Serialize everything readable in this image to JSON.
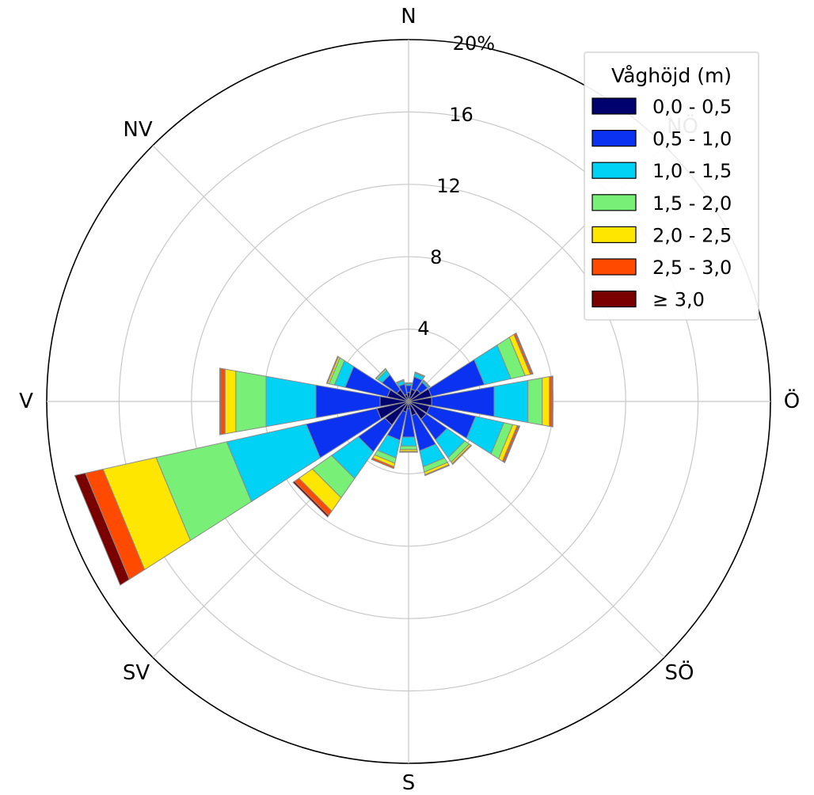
{
  "chart_data": {
    "type": "windrose",
    "title": "",
    "radial_unit": "%",
    "rmax": 20,
    "radial_ticks": [
      4,
      8,
      12,
      16,
      20
    ],
    "radial_tick_labels": [
      "4",
      "8",
      "12",
      "16",
      "20%"
    ],
    "direction_labels": {
      "N": "N",
      "NO": "NÖ",
      "O": "Ö",
      "SO": "SÖ",
      "S": "S",
      "SV": "SV",
      "V": "V",
      "NV": "NV"
    },
    "legend": {
      "title": "Våghöjd (m)",
      "placement": "top-right",
      "entries": [
        "0,0 - 0,5",
        "0,5 - 1,0",
        "1,0 - 1,5",
        "1,5 - 2,0",
        "2,0 - 2,5",
        "2,5 - 3,0",
        "≥ 3,0"
      ]
    },
    "bin_colors": [
      "#00006e",
      "#0a32f0",
      "#00d2f5",
      "#78f078",
      "#ffe600",
      "#ff4a00",
      "#7a0000"
    ],
    "sector_width_deg": 20,
    "directions_deg": [
      0,
      22.5,
      45,
      67.5,
      90,
      112.5,
      135,
      157.5,
      180,
      202.5,
      225,
      247.5,
      270,
      292.5,
      315,
      337.5
    ],
    "series": [
      {
        "name": "0,0 - 0,5",
        "values": [
          0.5,
          0.7,
          0.8,
          1.3,
          1.3,
          1.2,
          1.2,
          0.8,
          0.4,
          0.6,
          1.6,
          1.8,
          1.6,
          1.2,
          0.8,
          0.4
        ]
      },
      {
        "name": "0,5 - 1,0",
        "values": [
          0.4,
          0.7,
          0.5,
          3.0,
          3.5,
          2.6,
          1.4,
          2.0,
          1.6,
          1.6,
          1.8,
          4.0,
          3.6,
          2.4,
          1.0,
          0.6
        ]
      },
      {
        "name": "1,0 - 1,5",
        "values": [
          0.1,
          0.2,
          0.1,
          1.5,
          1.9,
          1.6,
          1.2,
          0.9,
          0.5,
          1.0,
          1.8,
          4.5,
          2.8,
          0.6,
          0.3,
          0.2
        ]
      },
      {
        "name": "1,5 - 2,0",
        "values": [
          0.05,
          0.05,
          0.05,
          0.8,
          0.8,
          0.5,
          0.3,
          0.3,
          0.2,
          0.3,
          1.3,
          4.0,
          1.7,
          0.3,
          0.1,
          0.05
        ]
      },
      {
        "name": "2,0 - 2,5",
        "values": [
          0,
          0.02,
          0,
          0.3,
          0.4,
          0.25,
          0.1,
          0.15,
          0.1,
          0.2,
          0.9,
          3.0,
          0.6,
          0.1,
          0.03,
          0
        ]
      },
      {
        "name": "2,5 - 3,0",
        "values": [
          0,
          0,
          0,
          0.1,
          0.15,
          0.1,
          0.05,
          0.05,
          0.05,
          0.1,
          0.3,
          1.0,
          0.25,
          0.05,
          0,
          0
        ]
      },
      {
        "name": "≥ 3,0",
        "values": [
          0,
          0,
          0,
          0.05,
          0.05,
          0.05,
          0,
          0,
          0,
          0,
          0.1,
          0.6,
          0.05,
          0,
          0,
          0
        ]
      }
    ],
    "grid": true
  }
}
